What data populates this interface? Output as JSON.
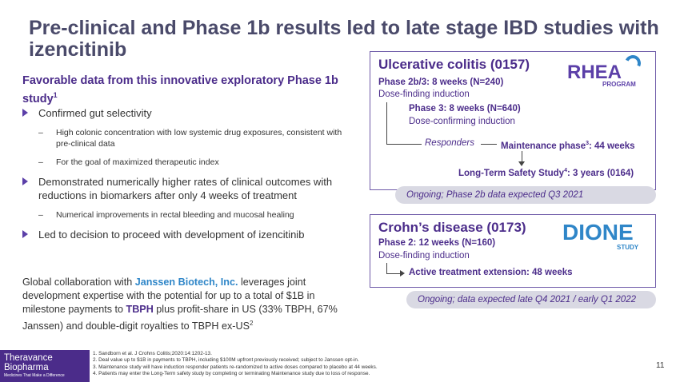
{
  "title": "Pre-clinical and Phase 1b results led to late stage IBD studies with izencitinib",
  "left": {
    "subhead": "Favorable data from this innovative exploratory Phase 1b study",
    "subhead_sup": "1",
    "b1": "Confirmed gut selectivity",
    "b1_s1": "High colonic concentration with low systemic drug exposures, consistent with pre-clinical data",
    "b1_s2": "For the goal of maximized therapeutic index",
    "b2": "Demonstrated numerically higher rates of clinical outcomes with reductions in biomarkers after only 4 weeks of treatment",
    "b2_s1": "Numerical improvements in rectal bleeding and mucosal healing",
    "b3": "Led to decision to proceed with development of izencitinib",
    "dash": "–",
    "collab": {
      "p1": "Global collaboration with ",
      "janssen": "Janssen Biotech, Inc.",
      "p2": " leverages joint development expertise with the potential for up to a total of $1B in milestone payments to ",
      "tbph": "TBPH",
      "p3": " plus profit-share in US (33% TBPH, 67% Janssen) and double-digit royalties to TBPH ex-US",
      "sup": "2"
    }
  },
  "uc": {
    "title": "Ulcerative colitis (0157)",
    "phase2b": "Phase 2b/3: 8 weeks (N=240)",
    "dose1": "Dose-finding induction",
    "phase3": "Phase 3: 8 weeks (N=640)",
    "dose2": "Dose-confirming induction",
    "responders": "Responders",
    "maintenance": "Maintenance phase",
    "maintenance_sup": "3",
    "maintenance_tail": ": 44 weeks",
    "ltss": "Long-Term Safety Study",
    "ltss_sup": "4",
    "ltss_tail": ": 3 years (0164)",
    "logo": "RHEA",
    "logo_sub": "PROGRAM",
    "status": "Ongoing; Phase 2b data expected Q3 2021"
  },
  "cd": {
    "title": "Crohn’s disease (0173)",
    "phase2": "Phase 2: 12 weeks (N=160)",
    "dose": "Dose-finding induction",
    "extension": "Active treatment extension: 48 weeks",
    "logo": "DIONE",
    "logo_sub": "STUDY",
    "status": "Ongoing; data expected late Q4 2021 / early Q1 2022"
  },
  "footer": {
    "brand1": "Theravance",
    "brand2": "Biopharma",
    "tagline": "Medicines That Make a Difference",
    "notes": [
      "1. Sandborn et al. J Crohns Colitis;2020:14:1202-13.",
      "2. Deal value up to $1B in payments to TBPH, including $100M upfront previously received; subject to Janssen opt-in.",
      "3. Maintenance study will have induction responder patients re-randomized to active doses compared to placebo at 44 weeks.",
      "4. Patients may enter the Long-Term safety study by completing or terminating Maintenance study due to loss of response."
    ],
    "page": "11"
  }
}
